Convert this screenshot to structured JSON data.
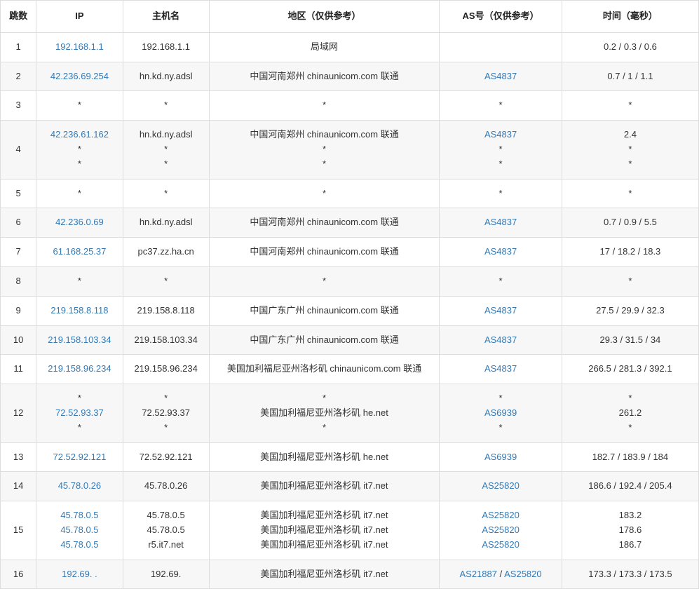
{
  "columns": {
    "hop": "跳数",
    "ip": "IP",
    "host": "主机名",
    "loc": "地区（仅供参考）",
    "as": "AS号（仅供参考）",
    "time": "时间（毫秒）"
  },
  "link_color": "#337ab7",
  "border_color": "#dddddd",
  "alt_row_bg": "#f7f7f7",
  "rows": [
    {
      "hop": "1",
      "ip": [
        {
          "text": "192.168.1.1",
          "link": true
        }
      ],
      "host": [
        {
          "text": "192.168.1.1"
        }
      ],
      "loc": [
        {
          "text": "局域网"
        }
      ],
      "as": [
        {
          "text": ""
        }
      ],
      "time": [
        {
          "text": "0.2 / 0.3 / 0.6"
        }
      ]
    },
    {
      "hop": "2",
      "ip": [
        {
          "text": "42.236.69.254",
          "link": true
        }
      ],
      "host": [
        {
          "text": "hn.kd.ny.adsl"
        }
      ],
      "loc": [
        {
          "text": "中国河南郑州 chinaunicom.com 联通"
        }
      ],
      "as": [
        {
          "text": "AS4837",
          "link": true
        }
      ],
      "time": [
        {
          "text": "0.7 / 1 / 1.1"
        }
      ]
    },
    {
      "hop": "3",
      "ip": [
        {
          "text": "*"
        }
      ],
      "host": [
        {
          "text": "*"
        }
      ],
      "loc": [
        {
          "text": "*"
        }
      ],
      "as": [
        {
          "text": "*"
        }
      ],
      "time": [
        {
          "text": "*"
        }
      ]
    },
    {
      "hop": "4",
      "ip": [
        {
          "text": "42.236.61.162",
          "link": true
        },
        {
          "text": "*"
        },
        {
          "text": "*"
        }
      ],
      "host": [
        {
          "text": "hn.kd.ny.adsl"
        },
        {
          "text": "*"
        },
        {
          "text": "*"
        }
      ],
      "loc": [
        {
          "text": "中国河南郑州 chinaunicom.com 联通"
        },
        {
          "text": "*"
        },
        {
          "text": "*"
        }
      ],
      "as": [
        {
          "text": "AS4837",
          "link": true
        },
        {
          "text": "*"
        },
        {
          "text": "*"
        }
      ],
      "time": [
        {
          "text": "2.4"
        },
        {
          "text": "*"
        },
        {
          "text": "*"
        }
      ]
    },
    {
      "hop": "5",
      "ip": [
        {
          "text": "*"
        }
      ],
      "host": [
        {
          "text": "*"
        }
      ],
      "loc": [
        {
          "text": "*"
        }
      ],
      "as": [
        {
          "text": "*"
        }
      ],
      "time": [
        {
          "text": "*"
        }
      ]
    },
    {
      "hop": "6",
      "ip": [
        {
          "text": "42.236.0.69",
          "link": true
        }
      ],
      "host": [
        {
          "text": "hn.kd.ny.adsl"
        }
      ],
      "loc": [
        {
          "text": "中国河南郑州 chinaunicom.com 联通"
        }
      ],
      "as": [
        {
          "text": "AS4837",
          "link": true
        }
      ],
      "time": [
        {
          "text": "0.7 / 0.9 / 5.5"
        }
      ]
    },
    {
      "hop": "7",
      "ip": [
        {
          "text": "61.168.25.37",
          "link": true
        }
      ],
      "host": [
        {
          "text": "pc37.zz.ha.cn"
        }
      ],
      "loc": [
        {
          "text": "中国河南郑州 chinaunicom.com 联通"
        }
      ],
      "as": [
        {
          "text": "AS4837",
          "link": true
        }
      ],
      "time": [
        {
          "text": "17 / 18.2 / 18.3"
        }
      ]
    },
    {
      "hop": "8",
      "ip": [
        {
          "text": "*"
        }
      ],
      "host": [
        {
          "text": "*"
        }
      ],
      "loc": [
        {
          "text": "*"
        }
      ],
      "as": [
        {
          "text": "*"
        }
      ],
      "time": [
        {
          "text": "*"
        }
      ]
    },
    {
      "hop": "9",
      "ip": [
        {
          "text": "219.158.8.118",
          "link": true
        }
      ],
      "host": [
        {
          "text": "219.158.8.118"
        }
      ],
      "loc": [
        {
          "text": "中国广东广州 chinaunicom.com 联通"
        }
      ],
      "as": [
        {
          "text": "AS4837",
          "link": true
        }
      ],
      "time": [
        {
          "text": "27.5 / 29.9 / 32.3"
        }
      ]
    },
    {
      "hop": "10",
      "ip": [
        {
          "text": "219.158.103.34",
          "link": true
        }
      ],
      "host": [
        {
          "text": "219.158.103.34"
        }
      ],
      "loc": [
        {
          "text": "中国广东广州 chinaunicom.com 联通"
        }
      ],
      "as": [
        {
          "text": "AS4837",
          "link": true
        }
      ],
      "time": [
        {
          "text": "29.3 / 31.5 / 34"
        }
      ]
    },
    {
      "hop": "11",
      "ip": [
        {
          "text": "219.158.96.234",
          "link": true
        }
      ],
      "host": [
        {
          "text": "219.158.96.234"
        }
      ],
      "loc": [
        {
          "text": "美国加利福尼亚州洛杉矶 chinaunicom.com 联通"
        }
      ],
      "as": [
        {
          "text": "AS4837",
          "link": true
        }
      ],
      "time": [
        {
          "text": "266.5 / 281.3 / 392.1"
        }
      ]
    },
    {
      "hop": "12",
      "ip": [
        {
          "text": "*"
        },
        {
          "text": "72.52.93.37",
          "link": true
        },
        {
          "text": "*"
        }
      ],
      "host": [
        {
          "text": "*"
        },
        {
          "text": "72.52.93.37"
        },
        {
          "text": "*"
        }
      ],
      "loc": [
        {
          "text": "*"
        },
        {
          "text": "美国加利福尼亚州洛杉矶 he.net"
        },
        {
          "text": "*"
        }
      ],
      "as": [
        {
          "text": "*"
        },
        {
          "text": "AS6939",
          "link": true
        },
        {
          "text": "*"
        }
      ],
      "time": [
        {
          "text": "*"
        },
        {
          "text": "261.2"
        },
        {
          "text": "*"
        }
      ]
    },
    {
      "hop": "13",
      "ip": [
        {
          "text": "72.52.92.121",
          "link": true
        }
      ],
      "host": [
        {
          "text": "72.52.92.121"
        }
      ],
      "loc": [
        {
          "text": "美国加利福尼亚州洛杉矶 he.net"
        }
      ],
      "as": [
        {
          "text": "AS6939",
          "link": true
        }
      ],
      "time": [
        {
          "text": "182.7 / 183.9 / 184"
        }
      ]
    },
    {
      "hop": "14",
      "ip": [
        {
          "text": "45.78.0.26",
          "link": true
        }
      ],
      "host": [
        {
          "text": "45.78.0.26"
        }
      ],
      "loc": [
        {
          "text": "美国加利福尼亚州洛杉矶 it7.net"
        }
      ],
      "as": [
        {
          "text": "AS25820",
          "link": true
        }
      ],
      "time": [
        {
          "text": "186.6 / 192.4 / 205.4"
        }
      ]
    },
    {
      "hop": "15",
      "ip": [
        {
          "text": "45.78.0.5",
          "link": true
        },
        {
          "text": "45.78.0.5",
          "link": true
        },
        {
          "text": "45.78.0.5",
          "link": true
        }
      ],
      "host": [
        {
          "text": "45.78.0.5"
        },
        {
          "text": "45.78.0.5"
        },
        {
          "text": "r5.it7.net"
        }
      ],
      "loc": [
        {
          "text": "美国加利福尼亚州洛杉矶 it7.net"
        },
        {
          "text": "美国加利福尼亚州洛杉矶 it7.net"
        },
        {
          "text": "美国加利福尼亚州洛杉矶 it7.net"
        }
      ],
      "as": [
        {
          "text": "AS25820",
          "link": true
        },
        {
          "text": "AS25820",
          "link": true
        },
        {
          "text": "AS25820",
          "link": true
        }
      ],
      "time": [
        {
          "text": "183.2"
        },
        {
          "text": "178.6"
        },
        {
          "text": "186.7"
        }
      ]
    },
    {
      "hop": "16",
      "ip": [
        {
          "text": "192.69. .",
          "link": true
        }
      ],
      "host": [
        {
          "text": "192.69."
        }
      ],
      "loc": [
        {
          "text": "美国加利福尼亚州洛杉矶 it7.net"
        }
      ],
      "as": [
        {
          "text": "AS21887",
          "link": true
        },
        {
          "text": " / ",
          "inline": true
        },
        {
          "text": "AS25820",
          "link": true
        }
      ],
      "time": [
        {
          "text": "173.3 / 173.3 / 173.5"
        }
      ]
    }
  ]
}
